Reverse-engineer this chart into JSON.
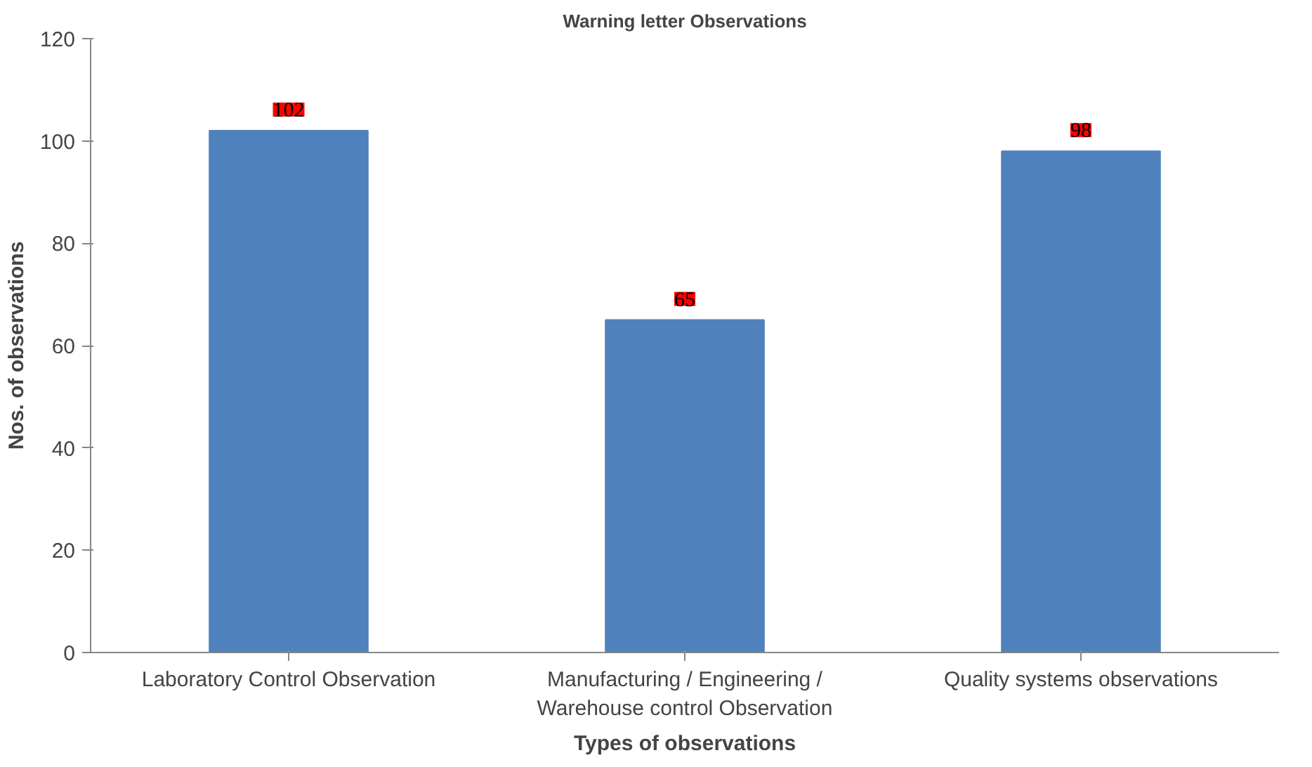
{
  "chart_data": {
    "type": "bar",
    "title": "Warning letter Observations",
    "xlabel": "Types of observations",
    "ylabel": "Nos. of observations",
    "categories": [
      "Laboratory Control Observation",
      "Manufacturing / Engineering / Warehouse control Observation",
      "Quality systems observations"
    ],
    "values": [
      102,
      65,
      98
    ],
    "color": "#4f81bd",
    "ylim": [
      0,
      120
    ],
    "yticks": [
      0,
      20,
      40,
      60,
      80,
      100,
      120
    ],
    "grid": false,
    "data_labels": true
  }
}
